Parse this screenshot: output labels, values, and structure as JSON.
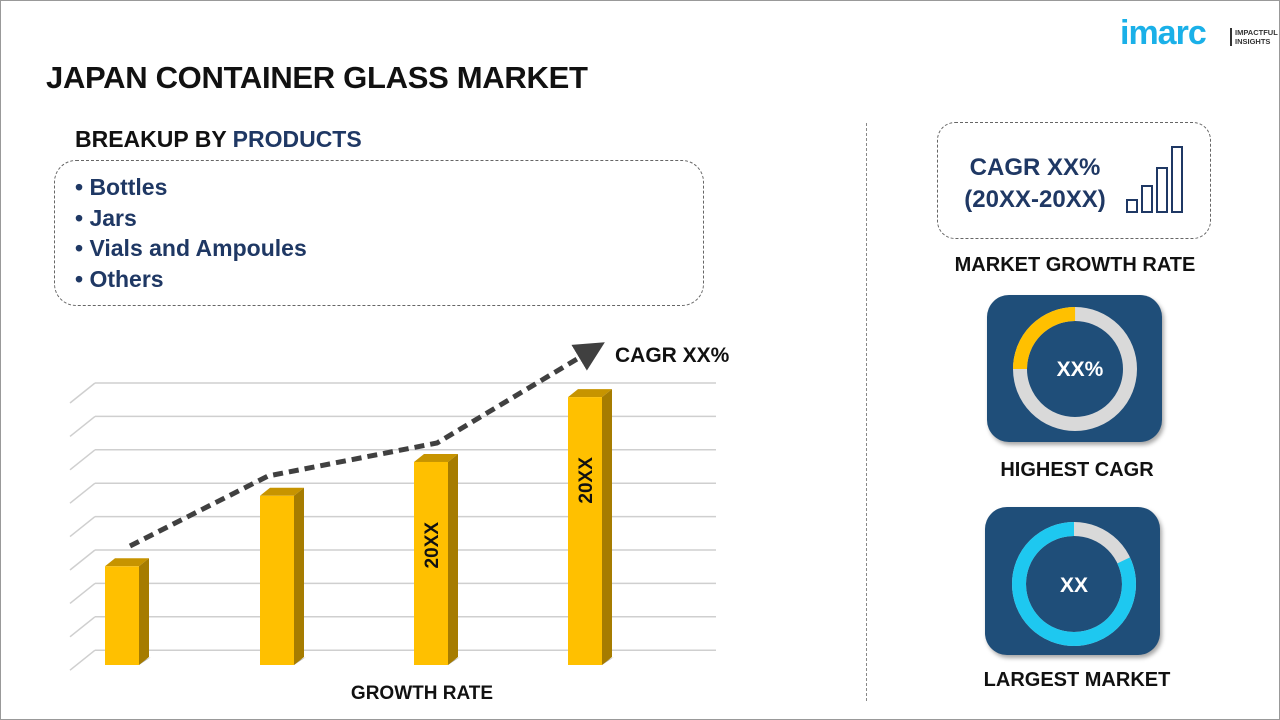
{
  "title": "JAPAN CONTAINER GLASS MARKET",
  "logo": {
    "text": "imarc",
    "tagline_1": "IMPACTFUL",
    "tagline_2": "INSIGHTS"
  },
  "breakup": {
    "prefix": "BREAKUP BY ",
    "highlight": "PRODUCTS",
    "items": [
      "• Bottles",
      "• Jars",
      "• Vials and Ampoules",
      "• Others"
    ]
  },
  "chart": {
    "cagr_label": "CAGR XX%",
    "xlabel": "GROWTH RATE",
    "bar_color": "#FFC000",
    "bars": [
      {
        "level": 0.35,
        "label": ""
      },
      {
        "level": 0.6,
        "label": ""
      },
      {
        "level": 0.72,
        "label": "20XX"
      },
      {
        "level": 0.95,
        "label": "20XX"
      }
    ]
  },
  "right": {
    "cagr_line1": "CAGR XX%",
    "cagr_line2": "(20XX-20XX)",
    "market_growth_label": "MARKET GROWTH RATE",
    "highest_value": "XX%",
    "highest_label": "HIGHEST CAGR",
    "highest_share": 0.25,
    "largest_value": "XX",
    "largest_label": "LARGEST MARKET",
    "largest_share": 0.82,
    "colors": {
      "card": "#1F4E79",
      "accent_yellow": "#FFC000",
      "accent_cyan": "#1EC8F0",
      "navy_text": "#1F3864"
    }
  }
}
